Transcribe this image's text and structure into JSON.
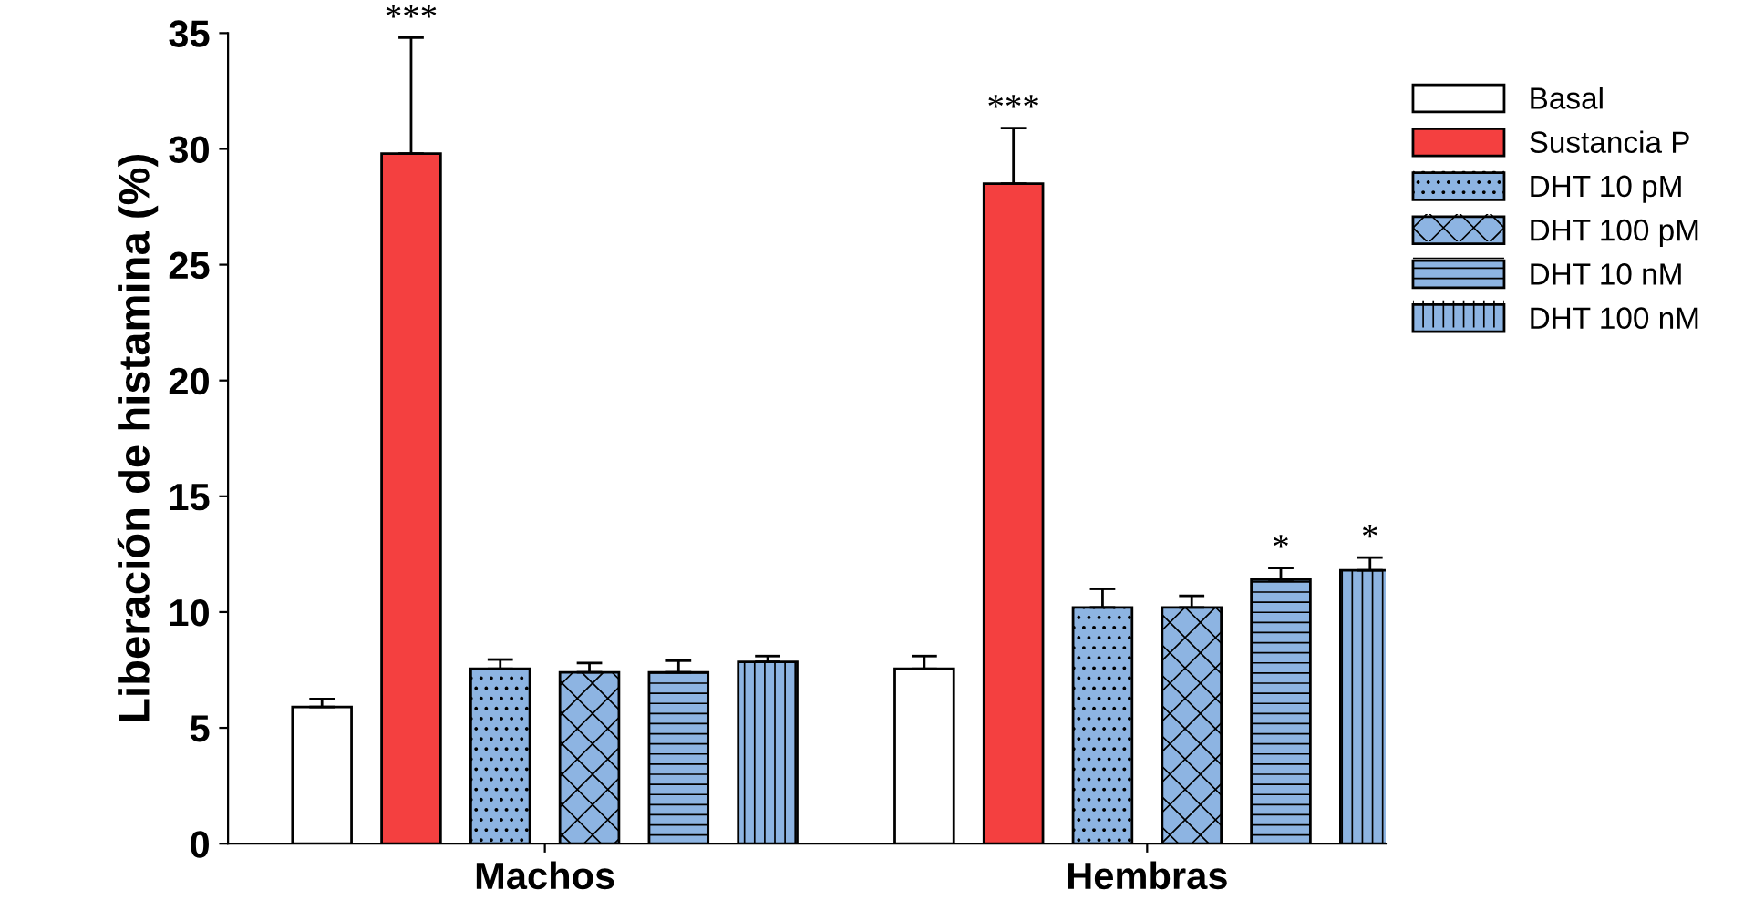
{
  "chart_data": {
    "type": "bar",
    "ylabel": "Liberación de histamina (%)",
    "categories": [
      "Machos",
      "Hembras"
    ],
    "ylim": [
      0,
      35
    ],
    "yticks": [
      0,
      5,
      10,
      15,
      20,
      25,
      30,
      35
    ],
    "grid": false,
    "legend": "right",
    "series": [
      {
        "name": "Basal",
        "color": "#ffffff",
        "values": [
          5.9,
          7.55
        ],
        "errors": [
          [
            5.9,
            6.25
          ],
          [
            7.55,
            8.1
          ]
        ]
      },
      {
        "name": "Sustancia P",
        "color": "#f44040",
        "values": [
          29.8,
          28.5
        ],
        "errors": [
          [
            29.8,
            34.8
          ],
          [
            28.5,
            30.9
          ]
        ]
      },
      {
        "name": "DHT 10 pM",
        "color": "#8db4e2",
        "values": [
          7.55,
          10.2
        ],
        "errors": [
          [
            7.55,
            7.95
          ],
          [
            10.2,
            11.0
          ]
        ]
      },
      {
        "name": "DHT 100 pM",
        "color": "#8db4e2",
        "values": [
          7.4,
          10.2
        ],
        "errors": [
          [
            7.4,
            7.8
          ],
          [
            10.2,
            10.7
          ]
        ]
      },
      {
        "name": "DHT 10 nM",
        "color": "#8db4e2",
        "values": [
          7.4,
          11.4
        ],
        "errors": [
          [
            7.4,
            7.9
          ],
          [
            11.4,
            11.9
          ]
        ]
      },
      {
        "name": "DHT 100 nM",
        "color": "#8db4e2",
        "values": [
          7.85,
          11.8
        ],
        "errors": [
          [
            7.85,
            8.1
          ],
          [
            11.8,
            12.35
          ]
        ]
      }
    ],
    "annotations": [
      "***",
      "***",
      "*",
      "*"
    ]
  }
}
